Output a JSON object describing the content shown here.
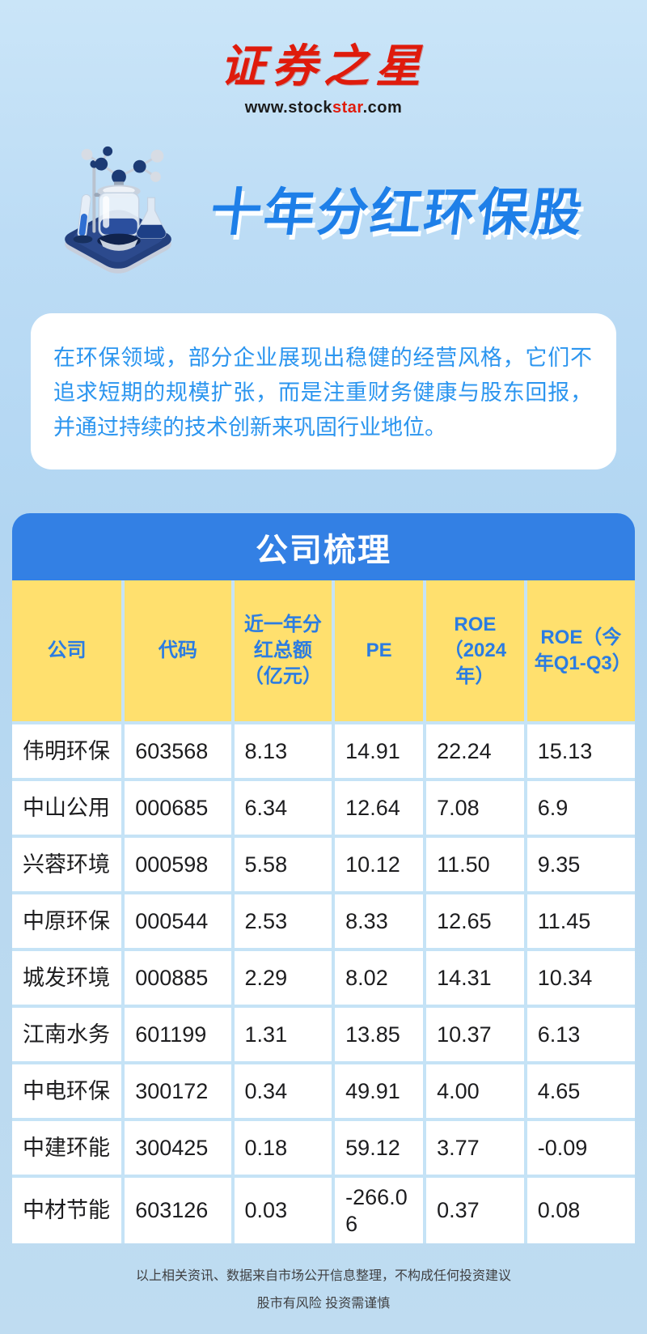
{
  "brand": {
    "logo_text": "证券之星",
    "url_prefix": "www.stock",
    "url_highlight": "star",
    "url_suffix": ".com"
  },
  "hero": {
    "title": "十年分红环保股",
    "icon": "lab-reactor-3d-icon"
  },
  "intro": {
    "text": "在环保领域，部分企业展现出稳健的经营风格，它们不追求短期的规模扩张，而是注重财务健康与股东回报，并通过持续的技术创新来巩固行业地位。"
  },
  "chart_data": {
    "type": "table",
    "title": "公司梳理",
    "columns": [
      "公司",
      "代码",
      "近一年分红总额（亿元）",
      "PE",
      "ROE（2024年）",
      "ROE（今年Q1-Q3）"
    ],
    "rows": [
      [
        "伟明环保",
        "603568",
        "8.13",
        "14.91",
        "22.24",
        "15.13"
      ],
      [
        "中山公用",
        "000685",
        "6.34",
        "12.64",
        "7.08",
        "6.9"
      ],
      [
        "兴蓉环境",
        "000598",
        "5.58",
        "10.12",
        "11.50",
        "9.35"
      ],
      [
        "中原环保",
        "000544",
        "2.53",
        "8.33",
        "12.65",
        "11.45"
      ],
      [
        "城发环境",
        "000885",
        "2.29",
        "8.02",
        "14.31",
        "10.34"
      ],
      [
        "江南水务",
        "601199",
        "1.31",
        "13.85",
        "10.37",
        "6.13"
      ],
      [
        "中电环保",
        "300172",
        "0.34",
        "49.91",
        "4.00",
        "4.65"
      ],
      [
        "中建环能",
        "300425",
        "0.18",
        "59.12",
        "3.77",
        "-0.09"
      ],
      [
        "中材节能",
        "603126",
        "0.03",
        "-266.06",
        "0.37",
        "0.08"
      ]
    ]
  },
  "footer": {
    "line1": "以上相关资讯、数据来自市场公开信息整理，不构成任何投资建议",
    "line2": "股市有风险 投资需谨慎"
  },
  "colors": {
    "brand_red": "#df1b0c",
    "title_blue": "#1e7fe8",
    "header_bar_blue": "#3380e4",
    "header_cell_yellow": "#ffe06e",
    "header_text_blue": "#2b7ce2",
    "intro_text_blue": "#2b95ef",
    "separator_light_blue": "#c5e3f6",
    "background_light_blue": "#bcdcf5"
  }
}
